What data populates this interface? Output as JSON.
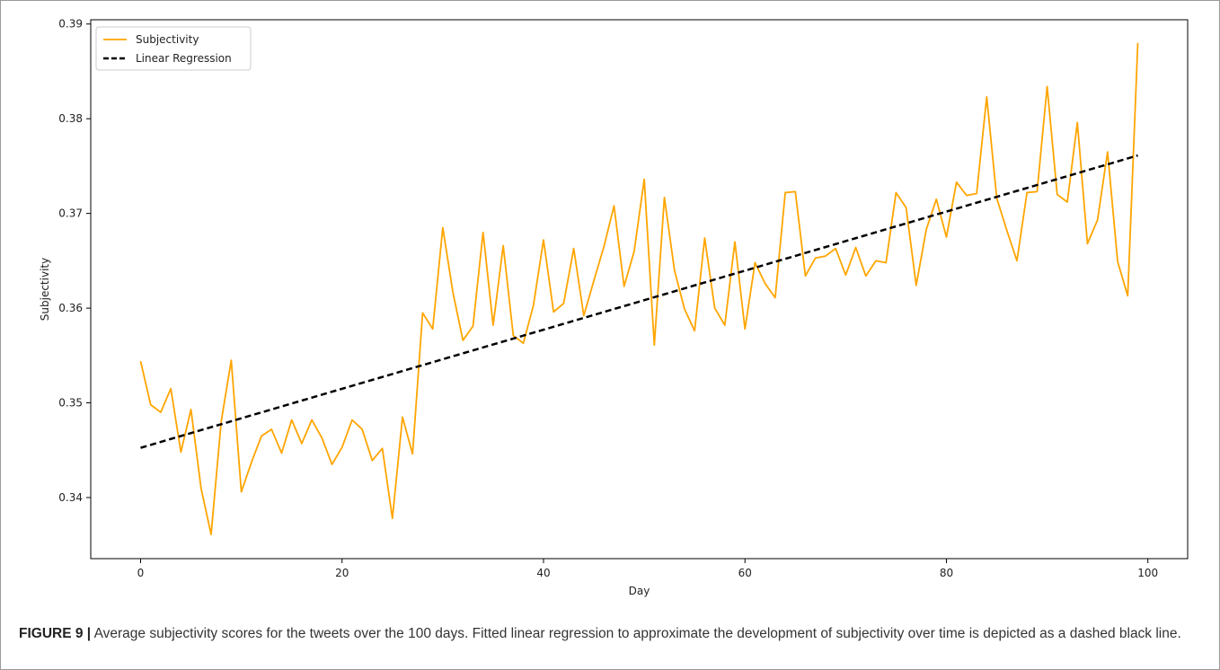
{
  "chart_data": {
    "type": "line",
    "xlabel": "Day",
    "ylabel": "Subjectivity",
    "xlim": [
      -4.95,
      103.95
    ],
    "ylim": [
      0.33355,
      0.39045
    ],
    "xticks": [
      0,
      20,
      40,
      60,
      80,
      100
    ],
    "yticks": [
      0.34,
      0.35,
      0.36,
      0.37,
      0.38,
      0.39
    ],
    "xtick_labels": [
      "0",
      "20",
      "40",
      "60",
      "80",
      "100"
    ],
    "ytick_labels": [
      "0.34",
      "0.35",
      "0.36",
      "0.37",
      "0.38",
      "0.39"
    ],
    "grid": false,
    "legend_position": "top-left",
    "series": [
      {
        "name": "Subjectivity",
        "color": "#FFA500",
        "style": "solid",
        "x": [
          0,
          1,
          2,
          3,
          4,
          5,
          6,
          7,
          8,
          9,
          10,
          11,
          12,
          13,
          14,
          15,
          16,
          17,
          18,
          19,
          20,
          21,
          22,
          23,
          24,
          25,
          26,
          27,
          28,
          29,
          30,
          31,
          32,
          33,
          34,
          35,
          36,
          37,
          38,
          39,
          40,
          41,
          42,
          43,
          44,
          45,
          46,
          47,
          48,
          49,
          50,
          51,
          52,
          53,
          54,
          55,
          56,
          57,
          58,
          59,
          60,
          61,
          62,
          63,
          64,
          65,
          66,
          67,
          68,
          69,
          70,
          71,
          72,
          73,
          74,
          75,
          76,
          77,
          78,
          79,
          80,
          81,
          82,
          83,
          84,
          85,
          86,
          87,
          88,
          89,
          90,
          91,
          92,
          93,
          94,
          95,
          96,
          97,
          98,
          99
        ],
        "y": [
          0.3544,
          0.3498,
          0.349,
          0.3515,
          0.3448,
          0.3493,
          0.341,
          0.3361,
          0.348,
          0.3545,
          0.3406,
          0.3437,
          0.3465,
          0.3472,
          0.3447,
          0.3482,
          0.3457,
          0.3482,
          0.3463,
          0.3435,
          0.3453,
          0.3482,
          0.3472,
          0.3439,
          0.3452,
          0.3378,
          0.3485,
          0.3446,
          0.3595,
          0.3578,
          0.3685,
          0.3617,
          0.3566,
          0.3581,
          0.368,
          0.3582,
          0.3666,
          0.3571,
          0.3563,
          0.3603,
          0.3672,
          0.3596,
          0.3605,
          0.3663,
          0.3592,
          0.3629,
          0.3665,
          0.3708,
          0.3623,
          0.366,
          0.3736,
          0.3561,
          0.3717,
          0.364,
          0.3599,
          0.3576,
          0.3674,
          0.36,
          0.3582,
          0.367,
          0.3578,
          0.3648,
          0.3626,
          0.3611,
          0.3722,
          0.3723,
          0.3634,
          0.3653,
          0.3655,
          0.3663,
          0.3635,
          0.3664,
          0.3634,
          0.365,
          0.3648,
          0.3722,
          0.3706,
          0.3624,
          0.3683,
          0.3715,
          0.3675,
          0.3733,
          0.3719,
          0.3721,
          0.3823,
          0.3716,
          0.3682,
          0.365,
          0.3722,
          0.3723,
          0.3834,
          0.372,
          0.3712,
          0.3796,
          0.3668,
          0.3693,
          0.3765,
          0.3649,
          0.3613,
          0.388
        ]
      },
      {
        "name": "Linear Regression",
        "color": "#000000",
        "style": "dashed",
        "x": [
          0,
          99
        ],
        "y": [
          0.34525,
          0.37612
        ]
      }
    ]
  },
  "caption": {
    "label": "FIGURE 9 |",
    "text": " Average subjectivity scores for the tweets over the 100 days. Fitted linear regression to approximate the development of subjectivity over time is depicted as a dashed black line."
  }
}
